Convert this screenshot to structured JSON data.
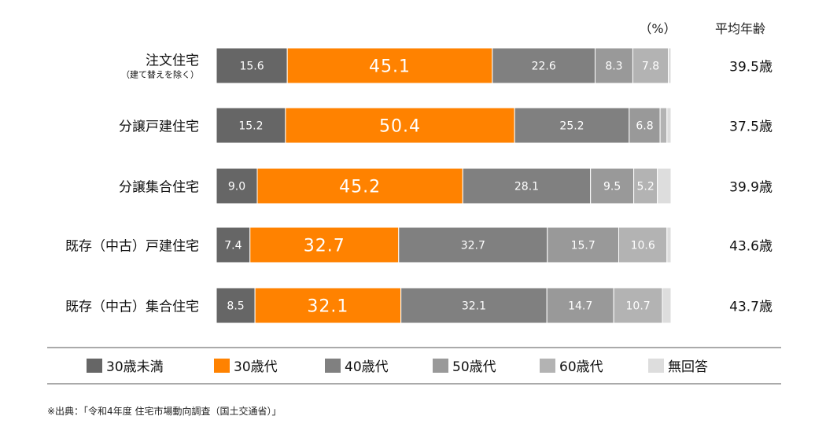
{
  "chart_data": {
    "type": "bar",
    "orientation": "horizontal",
    "stacked": true,
    "percent_label": "（%）",
    "avg_header": "平均年齢",
    "categories": [
      {
        "label": "注文住宅",
        "sublabel": "（建て替えを除く）",
        "avg": "39.5歳"
      },
      {
        "label": "分譲戸建住宅",
        "sublabel": "",
        "avg": "37.5歳"
      },
      {
        "label": "分譲集合住宅",
        "sublabel": "",
        "avg": "39.9歳"
      },
      {
        "label": "既存（中古）戸建住宅",
        "sublabel": "",
        "avg": "43.6歳"
      },
      {
        "label": "既存（中古）集合住宅",
        "sublabel": "",
        "avg": "43.7歳"
      }
    ],
    "series": [
      {
        "name": "30歳未満",
        "color": "#666666",
        "values": [
          15.6,
          15.2,
          9.0,
          7.4,
          8.5
        ],
        "labels": [
          "15.6",
          "15.2",
          "9.0",
          "7.4",
          "8.5"
        ]
      },
      {
        "name": "30歳代",
        "color": "#ff8200",
        "values": [
          45.1,
          50.4,
          45.2,
          32.7,
          32.1
        ],
        "labels": [
          "45.1",
          "50.4",
          "45.2",
          "32.7",
          "32.1"
        ]
      },
      {
        "name": "40歳代",
        "color": "#808080",
        "values": [
          22.6,
          25.2,
          28.1,
          32.7,
          32.1
        ],
        "labels": [
          "22.6",
          "25.2",
          "28.1",
          "32.7",
          "32.1"
        ]
      },
      {
        "name": "50歳代",
        "color": "#999999",
        "values": [
          8.3,
          6.8,
          9.5,
          15.7,
          14.7
        ],
        "labels": [
          "8.3",
          "6.8",
          "9.5",
          "15.7",
          "14.7"
        ]
      },
      {
        "name": "60歳代",
        "color": "#b3b3b3",
        "values": [
          7.8,
          1.5,
          5.2,
          10.6,
          10.7
        ],
        "labels": [
          "7.8",
          "",
          "5.2",
          "10.6",
          "10.7"
        ]
      },
      {
        "name": "無回答",
        "color": "#dddddd",
        "values": [
          0.6,
          0.9,
          3.0,
          0.9,
          1.9
        ],
        "labels": [
          "",
          "",
          "",
          "",
          ""
        ]
      }
    ],
    "xlim": [
      0,
      100
    ]
  },
  "source": "※出典：「令和4年度 住宅市場動向調査（国土交通省）」"
}
